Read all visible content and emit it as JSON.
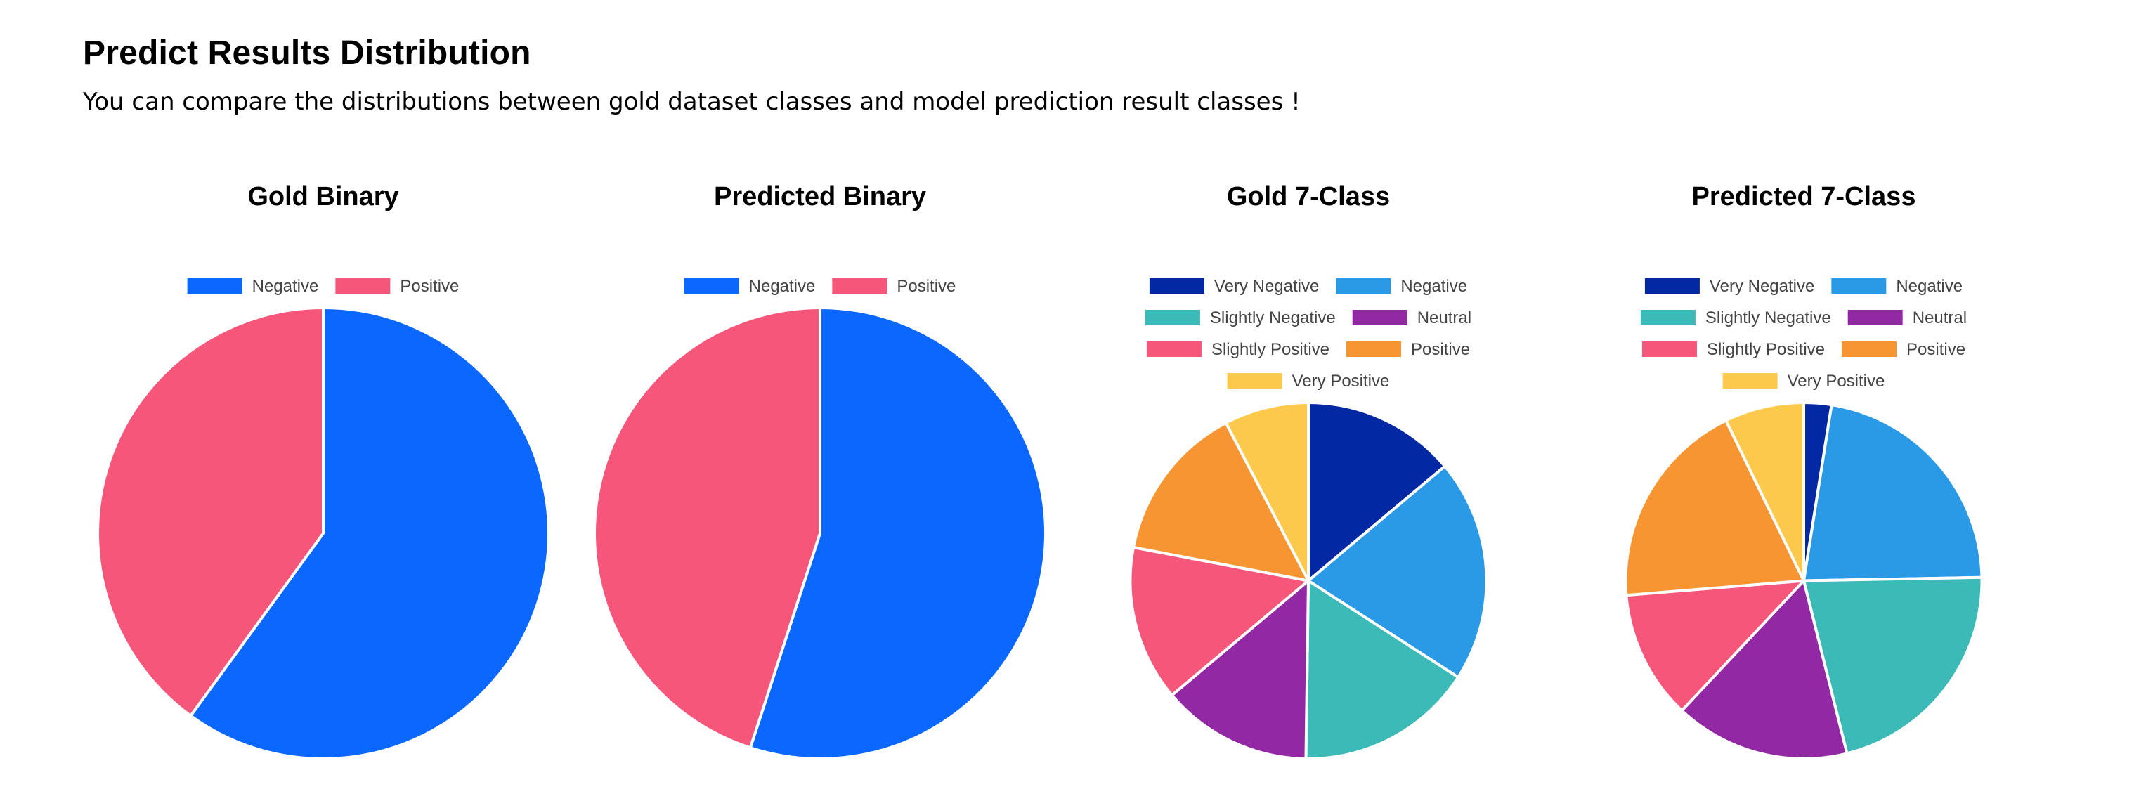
{
  "page": {
    "title": "Predict Results Distribution",
    "subtitle": "You can compare the distributions between gold dataset classes and model prediction result classes !"
  },
  "colors": {
    "very_negative": "#0228A4",
    "negative_7": "#2A99E6",
    "slightly_negative": "#3BBAB7",
    "neutral": "#9328A4",
    "slightly_positive": "#F5567A",
    "positive_7": "#F79532",
    "very_positive": "#FCC94C",
    "negative_binary": "#0A67FF",
    "positive_binary": "#F5567A"
  },
  "chart_data": [
    {
      "type": "pie",
      "title": "Gold Binary",
      "labels": [
        "Negative",
        "Positive"
      ],
      "values": [
        60.0,
        40.0
      ],
      "colors": [
        "#0A67FF",
        "#F5567A"
      ],
      "legend": "top"
    },
    {
      "type": "pie",
      "title": "Predicted Binary",
      "labels": [
        "Negative",
        "Positive"
      ],
      "values": [
        55.0,
        45.0
      ],
      "colors": [
        "#0A67FF",
        "#F5567A"
      ],
      "legend": "top"
    },
    {
      "type": "pie",
      "title": "Gold 7-Class",
      "labels": [
        "Very Negative",
        "Negative",
        "Slightly Negative",
        "Neutral",
        "Slightly Positive",
        "Positive",
        "Very Positive"
      ],
      "values": [
        12.5,
        18.2,
        14.5,
        12.3,
        12.7,
        12.9,
        6.9
      ],
      "colors": [
        "#0228A4",
        "#2A99E6",
        "#3BBAB7",
        "#9328A4",
        "#F5567A",
        "#F79532",
        "#FCC94C"
      ],
      "legend": "top"
    },
    {
      "type": "pie",
      "title": "Predicted 7-Class",
      "labels": [
        "Very Negative",
        "Negative",
        "Slightly Negative",
        "Neutral",
        "Slightly Positive",
        "Positive",
        "Very Positive"
      ],
      "values": [
        2.5,
        22.2,
        21.4,
        15.9,
        11.7,
        19.1,
        7.2
      ],
      "colors": [
        "#0228A4",
        "#2A99E6",
        "#3BBAB7",
        "#9328A4",
        "#F5567A",
        "#F79532",
        "#FCC94C"
      ],
      "legend": "top"
    }
  ]
}
